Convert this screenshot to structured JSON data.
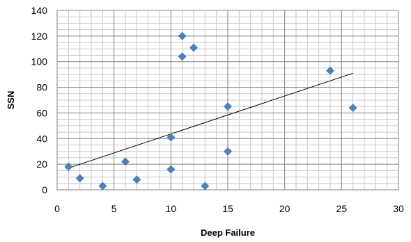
{
  "chart_data": {
    "type": "scatter",
    "xlabel": "Deep Failure",
    "ylabel": "SSN",
    "xlim": [
      0,
      30
    ],
    "ylim": [
      0,
      140
    ],
    "x_major_step": 5,
    "y_major_step": 20,
    "x_minor_step": 1,
    "y_minor_step": 5,
    "grid": true,
    "legend": "none",
    "marker": "diamond",
    "series": [
      {
        "color": "#4F81BD",
        "points": [
          {
            "x": 1,
            "y": 18
          },
          {
            "x": 2,
            "y": 9
          },
          {
            "x": 4,
            "y": 3
          },
          {
            "x": 6,
            "y": 22
          },
          {
            "x": 7,
            "y": 8
          },
          {
            "x": 10,
            "y": 41
          },
          {
            "x": 10,
            "y": 16
          },
          {
            "x": 11,
            "y": 120
          },
          {
            "x": 11,
            "y": 104
          },
          {
            "x": 12,
            "y": 111
          },
          {
            "x": 13,
            "y": 3
          },
          {
            "x": 15,
            "y": 65
          },
          {
            "x": 15,
            "y": 30
          },
          {
            "x": 24,
            "y": 93
          },
          {
            "x": 26,
            "y": 64
          }
        ]
      }
    ],
    "trendline": {
      "type": "linear",
      "color": "#000000",
      "x_start": 1,
      "y_start": 17,
      "x_end": 26,
      "y_end": 91
    }
  }
}
